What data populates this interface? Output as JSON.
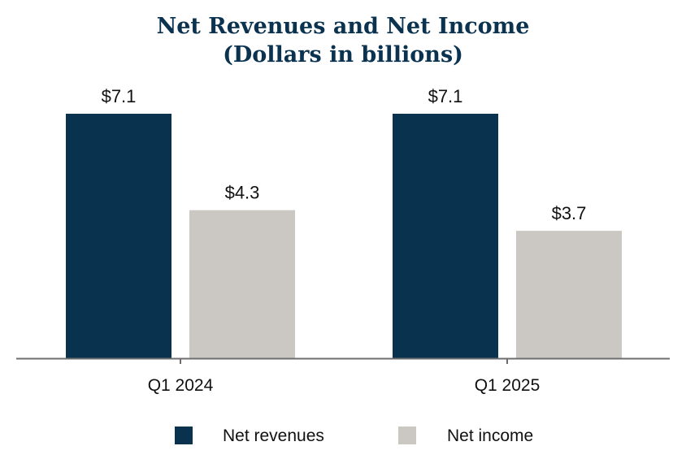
{
  "chart_data": {
    "type": "bar",
    "title": "Net Revenues and Net Income",
    "subtitle": "(Dollars in billions)",
    "categories": [
      "Q1 2024",
      "Q1 2025"
    ],
    "series": [
      {
        "name": "Net revenues",
        "values": [
          7.1,
          7.1
        ],
        "labels": [
          "$7.1",
          "$7.1"
        ],
        "color": "#08324d"
      },
      {
        "name": "Net income",
        "values": [
          4.3,
          3.7
        ],
        "labels": [
          "$4.3",
          "$3.7"
        ],
        "color": "#cbc7c2"
      }
    ],
    "ylim": [
      0,
      7.1
    ],
    "grid": false,
    "legend_position": "bottom"
  }
}
